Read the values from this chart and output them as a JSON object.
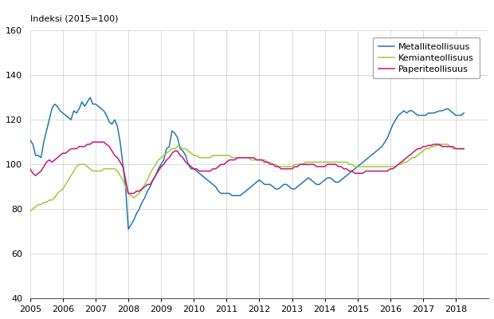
{
  "title": "Indeksi (2015=100)",
  "ylim": [
    40,
    160
  ],
  "yticks": [
    40,
    60,
    80,
    100,
    120,
    140,
    160
  ],
  "xlim": [
    2005.0,
    2019.0
  ],
  "xticks": [
    2005,
    2006,
    2007,
    2008,
    2009,
    2010,
    2011,
    2012,
    2013,
    2014,
    2015,
    2016,
    2017,
    2018
  ],
  "legend_labels": [
    "Metalliteollisuus",
    "Kemianteollisuus",
    "Paperiteollisuus"
  ],
  "colors": {
    "metalli": "#1f77b4",
    "kemia": "#9acd32",
    "paperi": "#cc1177"
  },
  "metalli": [
    111.0,
    109.0,
    104.0,
    104.0,
    103.0,
    110.0,
    115.0,
    120.0,
    125.0,
    127.0,
    126.0,
    124.0,
    123.0,
    122.0,
    121.0,
    120.0,
    124.0,
    123.0,
    125.0,
    128.0,
    126.0,
    128.0,
    130.0,
    127.0,
    127.0,
    126.0,
    125.0,
    124.0,
    122.0,
    119.0,
    118.0,
    120.0,
    117.0,
    110.0,
    100.0,
    90.0,
    71.0,
    73.0,
    75.0,
    78.0,
    80.0,
    83.0,
    85.0,
    88.0,
    90.0,
    93.0,
    95.0,
    98.0,
    100.0,
    102.0,
    107.0,
    108.0,
    115.0,
    114.0,
    112.0,
    107.0,
    106.0,
    104.0,
    100.0,
    98.0,
    98.0,
    97.0,
    96.0,
    95.0,
    94.0,
    93.0,
    92.0,
    91.0,
    90.0,
    88.0,
    87.0,
    87.0,
    87.0,
    87.0,
    86.0,
    86.0,
    86.0,
    86.0,
    87.0,
    88.0,
    89.0,
    90.0,
    91.0,
    92.0,
    93.0,
    92.0,
    91.0,
    91.0,
    91.0,
    90.0,
    89.0,
    89.0,
    90.0,
    91.0,
    91.0,
    90.0,
    89.0,
    89.0,
    90.0,
    91.0,
    92.0,
    93.0,
    94.0,
    93.0,
    92.0,
    91.0,
    91.0,
    92.0,
    93.0,
    94.0,
    94.0,
    93.0,
    92.0,
    92.0,
    93.0,
    94.0,
    95.0,
    96.0,
    97.0,
    98.0,
    99.0,
    100.0,
    101.0,
    102.0,
    103.0,
    104.0,
    105.0,
    106.0,
    107.0,
    108.0,
    110.0,
    112.0,
    115.0,
    118.0,
    120.0,
    122.0,
    123.0,
    124.0,
    123.0,
    124.0,
    124.0,
    123.0,
    122.0,
    122.0,
    122.0,
    122.0,
    123.0,
    123.0,
    123.0,
    123.5,
    124.0,
    124.0,
    124.5,
    125.0,
    124.0,
    123.0,
    122.0,
    122.0,
    122.0,
    123.0
  ],
  "kemia": [
    79.0,
    80.0,
    81.0,
    82.0,
    82.0,
    83.0,
    83.0,
    84.0,
    84.0,
    85.0,
    87.0,
    88.0,
    89.0,
    91.0,
    93.0,
    95.0,
    97.0,
    99.0,
    100.0,
    100.0,
    100.0,
    99.0,
    98.0,
    97.0,
    97.0,
    97.0,
    97.0,
    98.0,
    98.0,
    98.0,
    98.0,
    98.0,
    97.0,
    95.0,
    93.0,
    90.0,
    87.0,
    86.0,
    85.0,
    86.0,
    87.0,
    89.0,
    91.0,
    93.0,
    96.0,
    98.0,
    100.0,
    102.0,
    103.0,
    104.0,
    105.0,
    106.0,
    107.0,
    107.0,
    108.0,
    108.0,
    107.0,
    107.0,
    106.0,
    105.0,
    104.0,
    104.0,
    103.0,
    103.0,
    103.0,
    103.0,
    103.0,
    104.0,
    104.0,
    104.0,
    104.0,
    104.0,
    104.0,
    104.0,
    103.0,
    103.0,
    103.0,
    103.0,
    103.0,
    103.0,
    103.0,
    102.0,
    102.0,
    102.0,
    102.0,
    102.0,
    102.0,
    101.0,
    101.0,
    100.0,
    100.0,
    99.0,
    99.0,
    99.0,
    99.0,
    99.0,
    99.0,
    100.0,
    100.0,
    100.0,
    100.0,
    101.0,
    101.0,
    101.0,
    101.0,
    101.0,
    101.0,
    101.0,
    101.0,
    101.0,
    101.0,
    101.0,
    101.0,
    101.0,
    101.0,
    101.0,
    101.0,
    100.0,
    100.0,
    99.0,
    99.0,
    99.0,
    99.0,
    99.0,
    99.0,
    99.0,
    99.0,
    99.0,
    99.0,
    99.0,
    99.0,
    99.0,
    99.0,
    99.0,
    99.0,
    100.0,
    100.0,
    101.0,
    101.0,
    102.0,
    103.0,
    103.0,
    104.0,
    105.0,
    106.0,
    107.0,
    107.0,
    108.0,
    108.0,
    108.5,
    108.5,
    109.0,
    109.0,
    109.0,
    108.0,
    107.0,
    107.0,
    107.0,
    107.0,
    107.0
  ],
  "paperi": [
    98.0,
    96.0,
    95.0,
    96.0,
    97.0,
    99.0,
    101.0,
    102.0,
    101.0,
    102.0,
    103.0,
    104.0,
    105.0,
    105.0,
    106.0,
    107.0,
    107.0,
    107.0,
    108.0,
    108.0,
    108.0,
    109.0,
    109.0,
    110.0,
    110.0,
    110.0,
    110.0,
    110.0,
    109.0,
    108.0,
    106.0,
    104.0,
    103.0,
    101.0,
    99.0,
    93.0,
    87.0,
    87.0,
    87.0,
    88.0,
    88.0,
    89.0,
    90.0,
    91.0,
    91.0,
    93.0,
    95.0,
    97.0,
    99.0,
    100.0,
    102.0,
    103.0,
    105.0,
    106.0,
    106.0,
    104.0,
    103.0,
    101.0,
    100.0,
    99.0,
    98.0,
    98.0,
    97.0,
    97.0,
    97.0,
    97.0,
    97.0,
    98.0,
    98.0,
    99.0,
    100.0,
    100.0,
    101.0,
    102.0,
    102.0,
    102.0,
    103.0,
    103.0,
    103.0,
    103.0,
    103.0,
    103.0,
    103.0,
    102.0,
    102.0,
    102.0,
    101.0,
    101.0,
    100.0,
    100.0,
    99.0,
    99.0,
    98.0,
    98.0,
    98.0,
    98.0,
    98.0,
    99.0,
    99.0,
    100.0,
    100.0,
    100.0,
    100.0,
    100.0,
    100.0,
    99.0,
    99.0,
    99.0,
    99.0,
    100.0,
    100.0,
    100.0,
    100.0,
    99.0,
    99.0,
    98.0,
    98.0,
    97.0,
    97.0,
    96.0,
    96.0,
    96.0,
    96.0,
    97.0,
    97.0,
    97.0,
    97.0,
    97.0,
    97.0,
    97.0,
    97.0,
    97.0,
    98.0,
    98.0,
    99.0,
    100.0,
    101.0,
    102.0,
    103.0,
    104.0,
    105.0,
    106.0,
    107.0,
    107.0,
    108.0,
    108.0,
    108.5,
    108.5,
    109.0,
    109.0,
    109.0,
    108.0,
    108.0,
    108.0,
    108.0,
    108.0,
    107.0,
    107.0,
    107.0,
    107.0
  ]
}
